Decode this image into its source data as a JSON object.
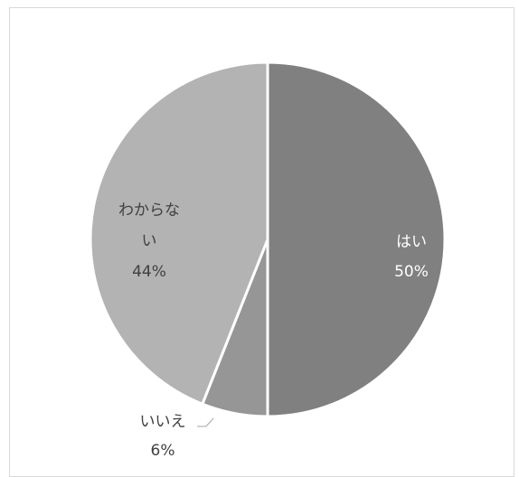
{
  "chart_data": {
    "type": "pie",
    "title": "",
    "start_angle_deg": 0,
    "direction": "clockwise",
    "slices": [
      {
        "label_lines": [
          "はい"
        ],
        "value": 50,
        "value_label": "50%",
        "color": "#808080",
        "label_color": "#ffffff"
      },
      {
        "label_lines": [
          "いいえ"
        ],
        "value": 6,
        "value_label": "6%",
        "color": "#969696",
        "label_color": "#404040"
      },
      {
        "label_lines": [
          "わからな",
          "い"
        ],
        "value": 44,
        "value_label": "44%",
        "color": "#b3b3b3",
        "label_color": "#404040"
      }
    ],
    "border_color": "#ffffff",
    "legend": "none"
  }
}
